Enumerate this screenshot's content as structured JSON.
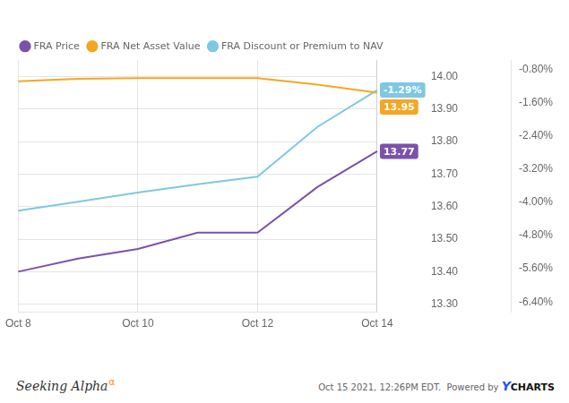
{
  "chart_data": {
    "type": "line",
    "categories": [
      "Oct 8",
      null,
      "Oct 10",
      null,
      "Oct 12",
      null,
      "Oct 14"
    ],
    "series": [
      {
        "name": "FRA Price",
        "color": "#7B52AB",
        "values": [
          13.4,
          13.44,
          13.47,
          13.52,
          13.52,
          13.66,
          13.77
        ]
      },
      {
        "name": "FRA Net Asset Value",
        "color": "#F5A623",
        "values": [
          13.985,
          13.993,
          13.995,
          13.995,
          13.995,
          13.975,
          13.95
        ]
      },
      {
        "name": "FRA Discount or Premium to NAV",
        "color": "#7EC8E3",
        "values": [
          -4.2,
          -3.98,
          -3.76,
          -3.56,
          -3.38,
          -2.18,
          -1.29
        ],
        "axis": "y2"
      }
    ],
    "ylim": [
      13.275,
      14.05
    ],
    "yticks": [
      {
        "value": 13.3,
        "label": "13.30"
      },
      {
        "value": 13.4,
        "label": "13.40"
      },
      {
        "value": 13.5,
        "label": "13.50"
      },
      {
        "value": 13.6,
        "label": "13.60"
      },
      {
        "value": 13.7,
        "label": "13.70"
      },
      {
        "value": 13.8,
        "label": "13.80"
      },
      {
        "value": 13.9,
        "label": "13.90"
      },
      {
        "value": 14.0,
        "label": "14.00"
      }
    ],
    "y2lim": [
      -6.65,
      -0.57
    ],
    "y2ticks": [
      {
        "value": -6.4,
        "label": "-6.40%"
      },
      {
        "value": -5.6,
        "label": "-5.60%"
      },
      {
        "value": -4.8,
        "label": "-4.80%"
      },
      {
        "value": -4.0,
        "label": "-4.00%"
      },
      {
        "value": -3.2,
        "label": "-3.20%"
      },
      {
        "value": -2.4,
        "label": "-2.40%"
      },
      {
        "value": -1.6,
        "label": "-1.60%"
      },
      {
        "value": -0.8,
        "label": "-0.80%"
      }
    ],
    "grid": true,
    "legend": "top",
    "annotations": [
      {
        "text": "13.95",
        "x": "Oct 14",
        "y": 13.95,
        "color": "#F5A623"
      },
      {
        "text": "13.77",
        "x": "Oct 14",
        "y": 13.77,
        "color": "#7B52AB"
      },
      {
        "text": "-1.29%",
        "x": "Oct 14",
        "y": -1.29,
        "axis": "y2",
        "color": "#7EC8E3"
      },
      {
        "text": "Seeking Alpha",
        "color": "#333333"
      },
      {
        "text": "α",
        "color": "#ff8800"
      },
      {
        "text": "Oct 15 2021, 12:26PM EDT.  Powered by ",
        "color": "#666666"
      },
      {
        "text": "Y",
        "color": "#1a56ff"
      },
      {
        "text": "CHARTS",
        "color": "#111111"
      }
    ]
  }
}
